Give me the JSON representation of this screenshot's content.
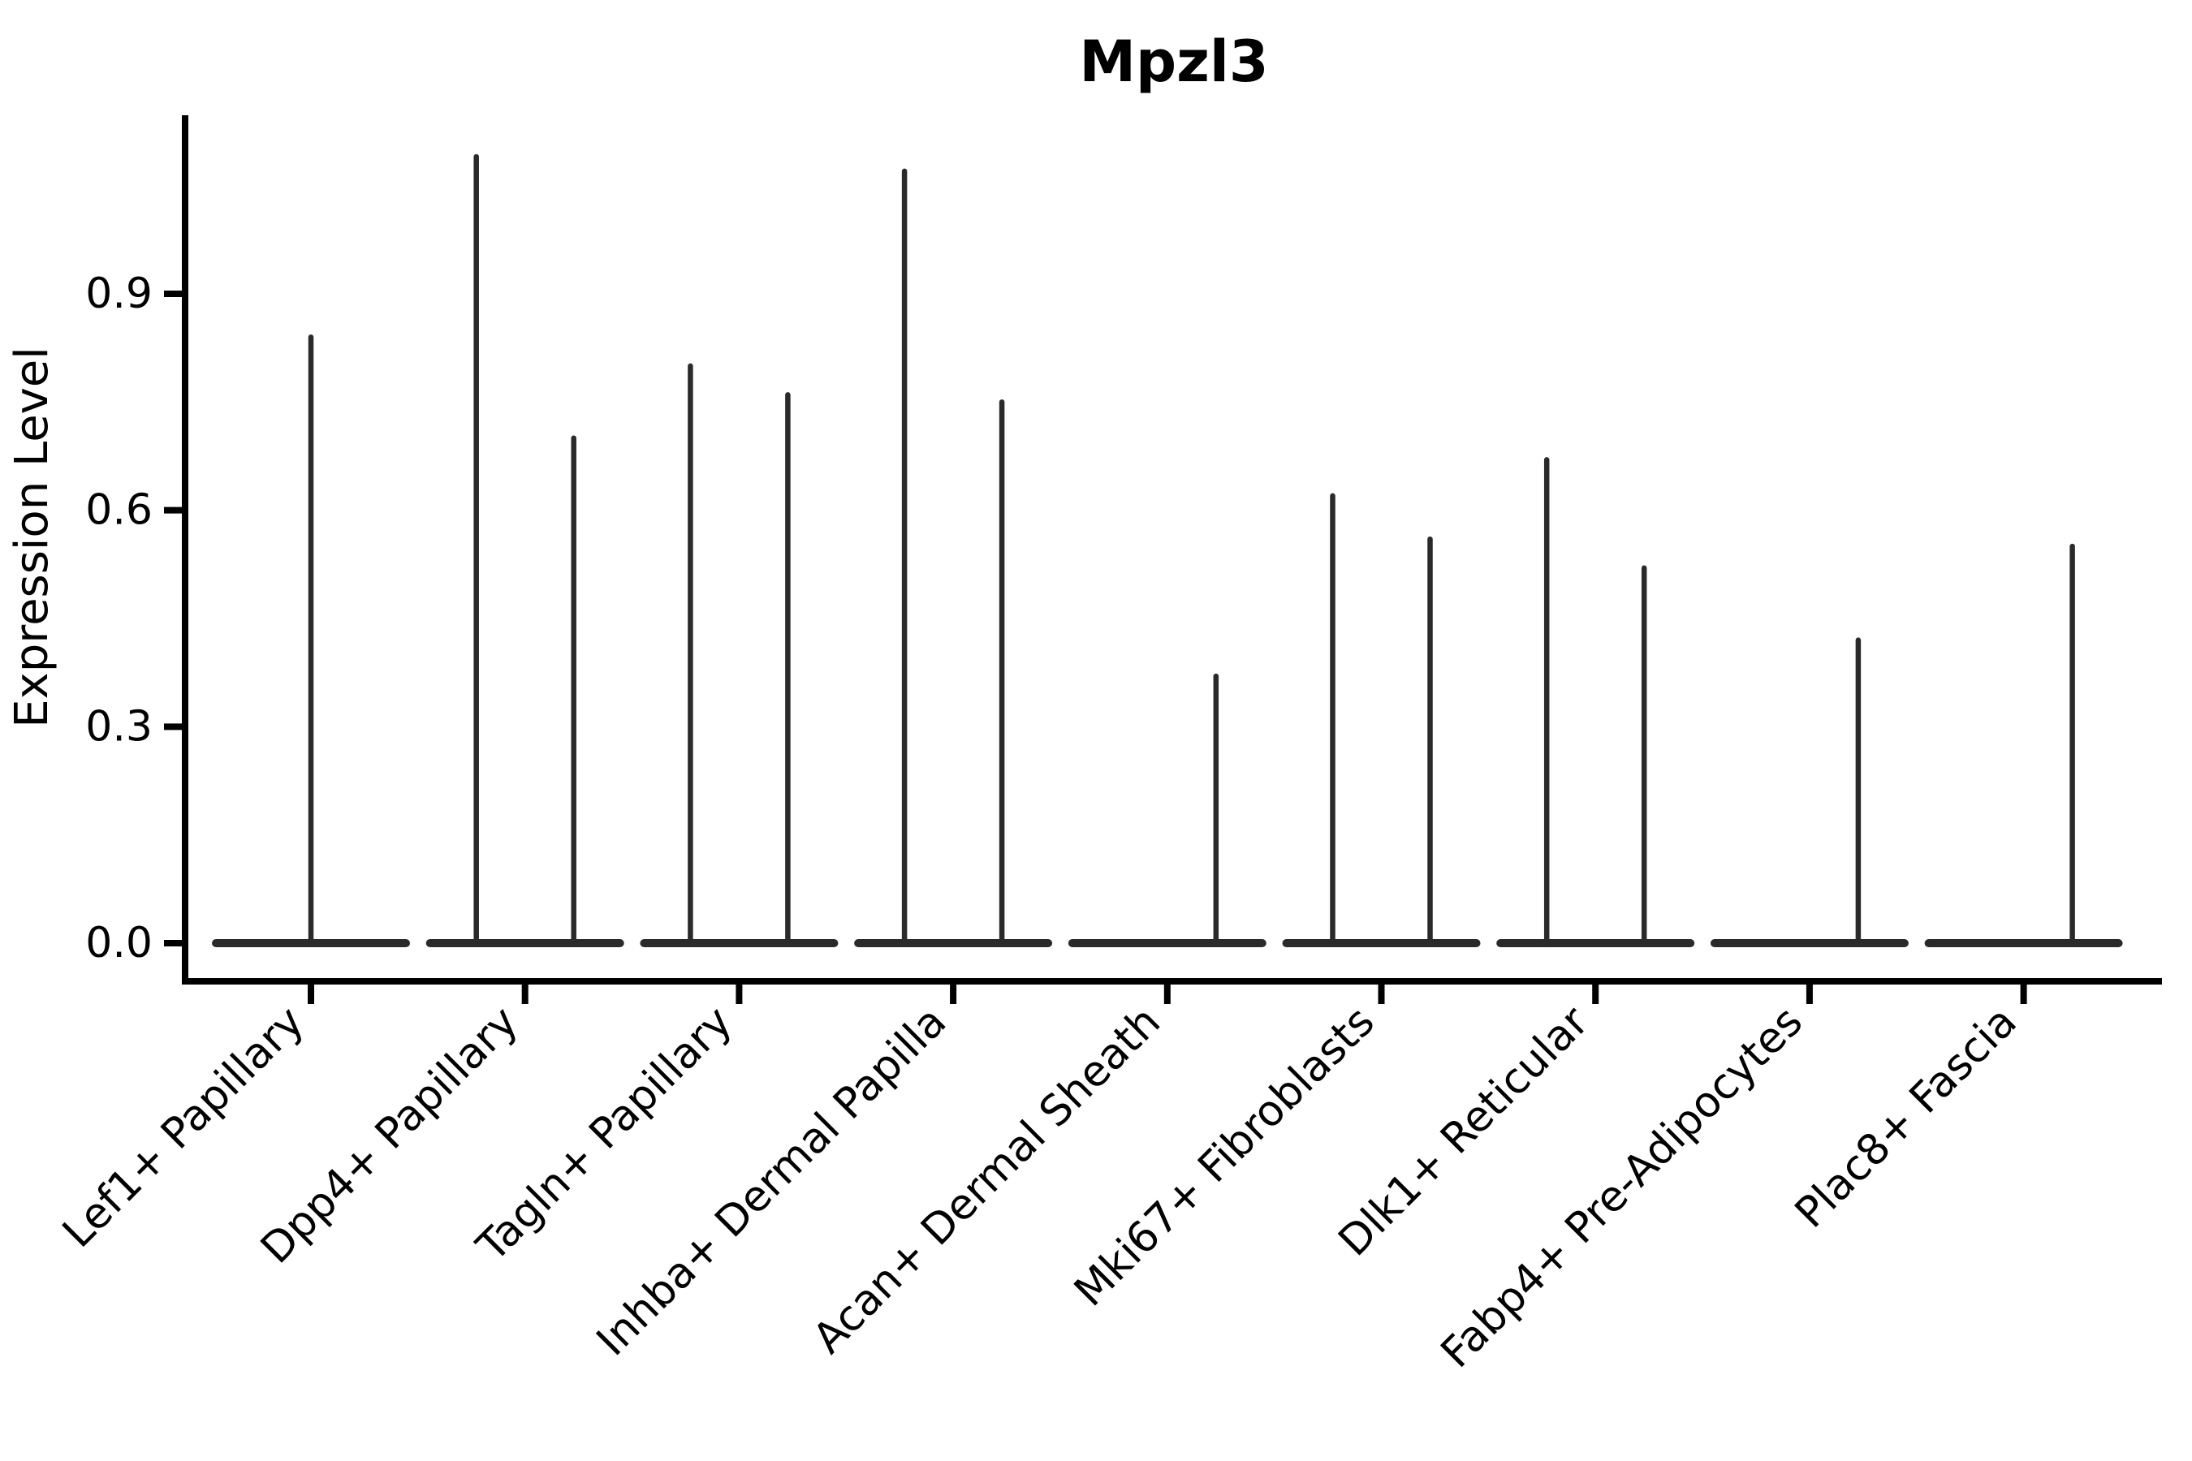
{
  "chart_data": {
    "type": "violin",
    "title": "Mpzl3",
    "xlabel": "",
    "ylabel": "Expression Level",
    "yticks": [
      "0.0",
      "0.3",
      "0.6",
      "0.9"
    ],
    "ylim": [
      0,
      1.15
    ],
    "grid": false,
    "legend": "none",
    "description": "Seurat-style violin plot of Mpzl3 expression; each cell type shows a wide flat violin base at 0 with thin density spikes rising to the maximum expression value. Categories with two spikes have left/right sub-violins at +/-60 px of the category center.",
    "categories": [
      "Lef1+ Papillary",
      "Dpp4+ Papillary",
      "Tagln+ Papillary",
      "Inhba+ Dermal Papilla",
      "Acan+ Dermal Sheath",
      "Mki67+ Fibroblasts",
      "Dlk1+ Reticular",
      "Fabp4+ Pre-Adipocytes",
      "Plac8+ Fascia"
    ],
    "violins": [
      {
        "category": "Lef1+ Papillary",
        "spikes": [
          {
            "position": "center",
            "max": 0.84
          }
        ]
      },
      {
        "category": "Dpp4+ Papillary",
        "spikes": [
          {
            "position": "left",
            "max": 1.09
          },
          {
            "position": "right",
            "max": 0.7
          }
        ]
      },
      {
        "category": "Tagln+ Papillary",
        "spikes": [
          {
            "position": "left",
            "max": 0.8
          },
          {
            "position": "right",
            "max": 0.76
          }
        ]
      },
      {
        "category": "Inhba+ Dermal Papilla",
        "spikes": [
          {
            "position": "left",
            "max": 1.07
          },
          {
            "position": "right",
            "max": 0.75
          }
        ]
      },
      {
        "category": "Acan+ Dermal Sheath",
        "spikes": [
          {
            "position": "right",
            "max": 0.37
          }
        ]
      },
      {
        "category": "Mki67+ Fibroblasts",
        "spikes": [
          {
            "position": "left",
            "max": 0.62
          },
          {
            "position": "right",
            "max": 0.56
          }
        ]
      },
      {
        "category": "Dlk1+ Reticular",
        "spikes": [
          {
            "position": "left",
            "max": 0.67
          },
          {
            "position": "right",
            "max": 0.52
          }
        ]
      },
      {
        "category": "Fabp4+ Pre-Adipocytes",
        "spikes": [
          {
            "position": "right",
            "max": 0.42
          }
        ]
      },
      {
        "category": "Plac8+ Fascia",
        "spikes": [
          {
            "position": "right",
            "max": 0.55
          }
        ]
      }
    ],
    "colors": {
      "violin": "#2a2a2a",
      "axis": "#000000",
      "text": "#000000",
      "background": "#ffffff"
    }
  }
}
